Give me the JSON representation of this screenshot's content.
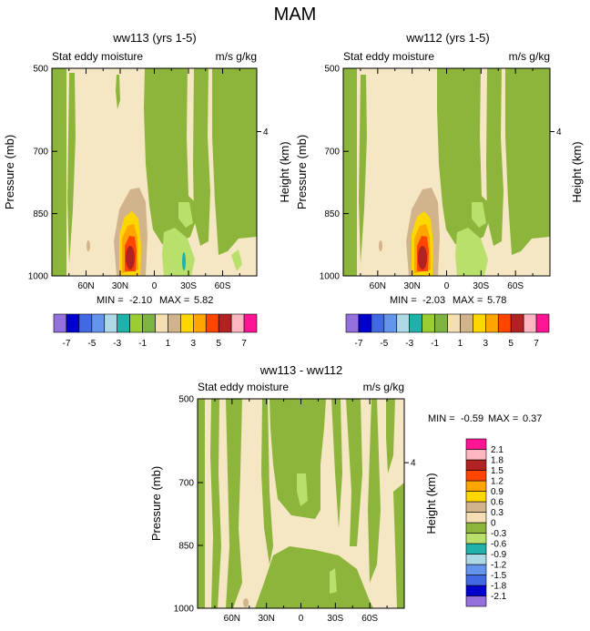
{
  "figure_title": "MAM",
  "chart_data": [
    {
      "type": "contour",
      "title": "ww113 (yrs 1-5)",
      "left_label": "Stat eddy moisture",
      "right_label": "m/s g/kg",
      "ylabel": "Pressure (mb)",
      "ylabel_right": "Height (km)",
      "x_ticks": [
        "60N",
        "30N",
        "0",
        "30S",
        "60S"
      ],
      "x_tick_values": [
        60,
        30,
        0,
        -30,
        -60
      ],
      "xlim": [
        90,
        -90
      ],
      "y_ticks": [
        "500",
        "700",
        "850",
        "1000"
      ],
      "y_tick_values": [
        500,
        700,
        850,
        1000
      ],
      "ylim": [
        500,
        1000
      ],
      "height_ticks": [
        "4"
      ],
      "stats": {
        "min_label": "MIN =",
        "min": "-2.10",
        "max_label": "MAX =",
        "max": "5.82"
      }
    },
    {
      "type": "contour",
      "title": "ww112 (yrs 1-5)",
      "left_label": "Stat eddy moisture",
      "right_label": "m/s g/kg",
      "ylabel": "Pressure (mb)",
      "ylabel_right": "Height (km)",
      "x_ticks": [
        "60N",
        "30N",
        "0",
        "30S",
        "60S"
      ],
      "x_tick_values": [
        60,
        30,
        0,
        -30,
        -60
      ],
      "xlim": [
        90,
        -90
      ],
      "y_ticks": [
        "500",
        "700",
        "850",
        "1000"
      ],
      "y_tick_values": [
        500,
        700,
        850,
        1000
      ],
      "ylim": [
        500,
        1000
      ],
      "height_ticks": [
        "4"
      ],
      "stats": {
        "min_label": "MIN =",
        "min": "-2.03",
        "max_label": "MAX =",
        "max": "5.78"
      }
    },
    {
      "type": "contour",
      "title": "ww113 - ww112",
      "left_label": "Stat eddy moisture",
      "right_label": "m/s g/kg",
      "ylabel": "Pressure (mb)",
      "ylabel_right": "Height (km)",
      "x_ticks": [
        "60N",
        "30N",
        "0",
        "30S",
        "60S"
      ],
      "x_tick_values": [
        60,
        30,
        0,
        -30,
        -60
      ],
      "xlim": [
        90,
        -90
      ],
      "y_ticks": [
        "500",
        "700",
        "850",
        "1000"
      ],
      "y_tick_values": [
        500,
        700,
        850,
        1000
      ],
      "ylim": [
        500,
        1000
      ],
      "height_ticks": [
        "4"
      ],
      "stats": {
        "min_label": "MIN =",
        "min": "-0.59",
        "max_label": "MAX =",
        "max": "0.37"
      }
    }
  ],
  "colorbar_top": {
    "colors": [
      "#9370db",
      "#0000cd",
      "#4169e1",
      "#6495ed",
      "#add8e6",
      "#20b2aa",
      "#9acd32",
      "#7cb342",
      "#f5deb3",
      "#d2b48c",
      "#ffd700",
      "#ffa500",
      "#ff4500",
      "#b22222",
      "#ffb6c1",
      "#ff1493"
    ],
    "labels": [
      "-7",
      "-5",
      "-3",
      "-1",
      "1",
      "3",
      "5",
      "7"
    ]
  },
  "colorbar_diff": {
    "colors": [
      "#9370db",
      "#0000cd",
      "#4169e1",
      "#6495ed",
      "#add8e6",
      "#20b2aa",
      "#b8e06a",
      "#8db53c",
      "#f5deb3",
      "#d2b48c",
      "#ffd700",
      "#ffa500",
      "#ff4500",
      "#b22222",
      "#ffb6c1",
      "#ff1493"
    ],
    "labels": [
      "2.1",
      "1.8",
      "1.5",
      "1.2",
      "0.9",
      "0.6",
      "0.3",
      "0",
      "-0.3",
      "-0.6",
      "-0.9",
      "-1.2",
      "-1.5",
      "-1.8",
      "-2.1"
    ]
  }
}
